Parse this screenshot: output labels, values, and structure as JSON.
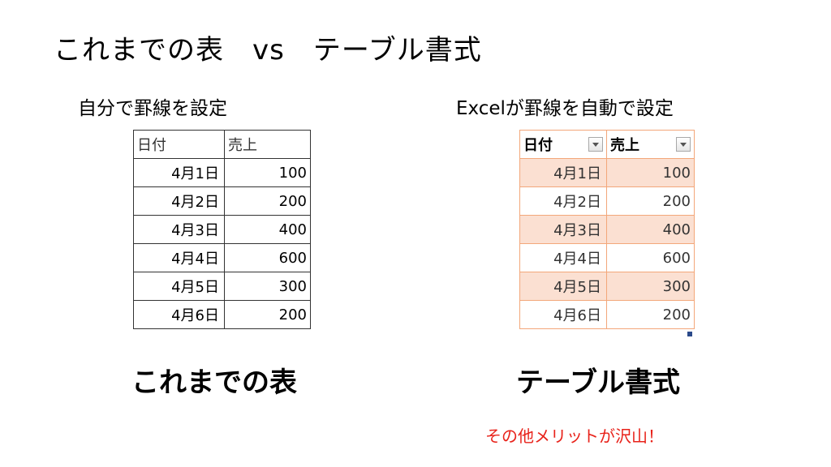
{
  "title": "これまでの表　vs　テーブル書式",
  "left": {
    "subtitle": "自分で罫線を設定",
    "headers": [
      "日付",
      "売上"
    ],
    "rows": [
      [
        "4月1日",
        "100"
      ],
      [
        "4月2日",
        "200"
      ],
      [
        "4月3日",
        "400"
      ],
      [
        "4月4日",
        "600"
      ],
      [
        "4月5日",
        "300"
      ],
      [
        "4月6日",
        "200"
      ]
    ],
    "caption": "これまでの表"
  },
  "right": {
    "subtitle": "Excelが罫線を自動で設定",
    "headers": [
      "日付",
      "売上"
    ],
    "rows": [
      [
        "4月1日",
        "100"
      ],
      [
        "4月2日",
        "200"
      ],
      [
        "4月3日",
        "400"
      ],
      [
        "4月4日",
        "600"
      ],
      [
        "4月5日",
        "300"
      ],
      [
        "4月6日",
        "200"
      ]
    ],
    "caption": "テーブル書式",
    "band_color": "#fbe0d2",
    "border_color": "#f3a77a"
  },
  "note": "その他メリットが沢山！",
  "note_color": "#e8221a",
  "icons": {
    "filter": "dropdown-filter-icon",
    "resize": "table-resize-handle"
  }
}
